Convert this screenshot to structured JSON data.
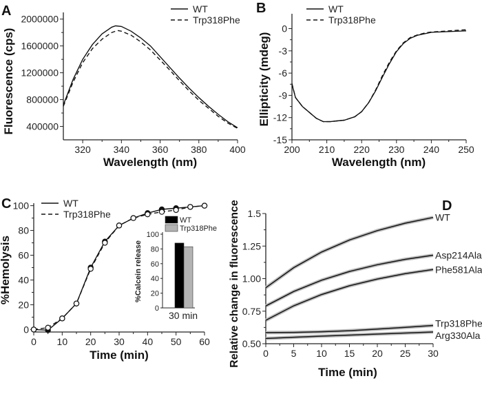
{
  "chart_data": [
    {
      "panel": "A",
      "type": "line",
      "xlabel": "Wavelength (nm)",
      "ylabel": "Fluorescence (cps)",
      "xlim": [
        310,
        400
      ],
      "ylim": [
        200000,
        2100000
      ],
      "xticks": [
        320,
        340,
        360,
        380,
        400
      ],
      "yticks": [
        400000,
        800000,
        1200000,
        1600000,
        2000000
      ],
      "legend": {
        "placement": "top-right",
        "entries": [
          "WT",
          "Trp318Phe"
        ]
      },
      "series": [
        {
          "name": "WT",
          "style": "solid",
          "x": [
            310,
            315,
            320,
            325,
            330,
            335,
            337,
            340,
            345,
            350,
            355,
            360,
            365,
            370,
            375,
            380,
            385,
            390,
            395,
            400
          ],
          "y": [
            720000,
            1100000,
            1400000,
            1620000,
            1780000,
            1880000,
            1900000,
            1890000,
            1820000,
            1720000,
            1600000,
            1440000,
            1280000,
            1120000,
            970000,
            830000,
            700000,
            580000,
            470000,
            380000
          ]
        },
        {
          "name": "Trp318Phe",
          "style": "dashed",
          "x": [
            310,
            315,
            320,
            325,
            330,
            335,
            338,
            340,
            345,
            350,
            355,
            360,
            365,
            370,
            375,
            380,
            385,
            390,
            395,
            400
          ],
          "y": [
            700000,
            1060000,
            1350000,
            1560000,
            1700000,
            1800000,
            1830000,
            1820000,
            1760000,
            1660000,
            1540000,
            1390000,
            1240000,
            1080000,
            930000,
            790000,
            670000,
            550000,
            450000,
            370000
          ]
        }
      ]
    },
    {
      "panel": "B",
      "type": "line",
      "xlabel": "Wavelength (nm)",
      "ylabel": "Ellipticity (mdeg)",
      "xlim": [
        200,
        250
      ],
      "ylim": [
        -15,
        2
      ],
      "xticks": [
        200,
        210,
        220,
        230,
        240,
        250
      ],
      "yticks": [
        -15,
        -12,
        -9,
        -6,
        -3,
        0
      ],
      "legend": {
        "placement": "top-left",
        "entries": [
          "WT",
          "Trp318Phe"
        ]
      },
      "series": [
        {
          "name": "WT",
          "style": "solid",
          "x": [
            200,
            201,
            203,
            205,
            207,
            209,
            211,
            213,
            215,
            218,
            220,
            222,
            224,
            226,
            228,
            230,
            232,
            234,
            236,
            238,
            240,
            245,
            250
          ],
          "y": [
            -7.5,
            -9.3,
            -10.5,
            -11.3,
            -12.1,
            -12.55,
            -12.55,
            -12.45,
            -12.35,
            -11.9,
            -11.2,
            -10.0,
            -8.4,
            -6.5,
            -4.7,
            -3.1,
            -2.0,
            -1.3,
            -0.9,
            -0.7,
            -0.5,
            -0.4,
            -0.3
          ]
        },
        {
          "name": "Trp318Phe",
          "style": "dashed",
          "x": [
            200,
            201,
            203,
            205,
            207,
            209,
            211,
            213,
            215,
            218,
            220,
            222,
            224,
            226,
            228,
            230,
            232,
            234,
            236,
            238,
            240,
            245,
            250
          ],
          "y": [
            -7.4,
            -9.3,
            -10.5,
            -11.3,
            -12.1,
            -12.55,
            -12.55,
            -12.45,
            -12.35,
            -11.9,
            -11.2,
            -10.0,
            -8.3,
            -6.3,
            -4.5,
            -3.0,
            -1.9,
            -1.2,
            -0.85,
            -0.6,
            -0.45,
            -0.3,
            -0.15
          ]
        }
      ]
    },
    {
      "panel": "C",
      "type": "line",
      "xlabel": "Time (min)",
      "ylabel": "%Hemolysis",
      "xlim": [
        0,
        60
      ],
      "ylim": [
        -2,
        102
      ],
      "xticks": [
        0,
        10,
        20,
        30,
        40,
        50,
        60
      ],
      "yticks": [
        0,
        20,
        40,
        60,
        80,
        100
      ],
      "legend": {
        "placement": "top-left",
        "entries": [
          "WT",
          "Trp318Phe"
        ]
      },
      "series": [
        {
          "name": "WT",
          "style": "solid",
          "marker": "filled-circle",
          "x": [
            0,
            5,
            10,
            15,
            20,
            25,
            30,
            35,
            40,
            45,
            50,
            55,
            60
          ],
          "y": [
            0,
            -0.5,
            9,
            21,
            50,
            71,
            84,
            90,
            94,
            97,
            98,
            99,
            100
          ]
        },
        {
          "name": "Trp318Phe",
          "style": "dashed",
          "marker": "open-circle",
          "x": [
            0,
            5,
            10,
            15,
            20,
            25,
            30,
            35,
            40,
            45,
            50,
            55,
            60
          ],
          "y": [
            0,
            1.5,
            9,
            21,
            49,
            70,
            84,
            90,
            93,
            95,
            96.5,
            99,
            100
          ]
        }
      ],
      "inset": {
        "type": "bar",
        "ylabel": "%Calcein release",
        "categories": [
          "30 min"
        ],
        "ylim": [
          0,
          100
        ],
        "yticks": [
          0,
          20,
          40,
          60,
          80,
          100
        ],
        "legend": {
          "placement": "top",
          "entries": [
            "WT",
            "Trp318Phe"
          ]
        },
        "series": [
          {
            "name": "WT",
            "color": "#000000",
            "values": [
              88
            ]
          },
          {
            "name": "Trp318Phe",
            "color": "#b4b4b4",
            "values": [
              83
            ]
          }
        ]
      }
    },
    {
      "panel": "D",
      "type": "line",
      "xlabel": "Time (min)",
      "ylabel": "Relative change in fluorescence",
      "xlim": [
        0,
        30
      ],
      "ylim": [
        0.5,
        1.5
      ],
      "xticks": [
        0,
        5,
        10,
        15,
        20,
        25,
        30
      ],
      "yticks": [
        0.5,
        0.75,
        1.0,
        1.25,
        1.5
      ],
      "ytick_labels": [
        "0.50",
        "0.75",
        "1.00",
        "1.25",
        "1.5"
      ],
      "series": [
        {
          "name": "WT",
          "x": [
            0,
            5,
            10,
            15,
            20,
            25,
            30
          ],
          "y": [
            0.93,
            1.084,
            1.204,
            1.297,
            1.369,
            1.426,
            1.47
          ]
        },
        {
          "name": "Asp214Ala",
          "x": [
            0,
            5,
            10,
            15,
            20,
            25,
            30
          ],
          "y": [
            0.79,
            0.901,
            0.988,
            1.055,
            1.107,
            1.148,
            1.18
          ]
        },
        {
          "name": "Phe581Ala",
          "x": [
            0,
            5,
            10,
            15,
            20,
            25,
            30
          ],
          "y": [
            0.68,
            0.791,
            0.878,
            0.945,
            0.997,
            1.038,
            1.07
          ]
        },
        {
          "name": "Trp318Phe",
          "x": [
            0,
            5,
            10,
            15,
            20,
            25,
            30
          ],
          "y": [
            0.585,
            0.587,
            0.592,
            0.6,
            0.612,
            0.626,
            0.64
          ]
        },
        {
          "name": "Arg330Ala",
          "x": [
            0,
            5,
            10,
            15,
            20,
            25,
            30
          ],
          "y": [
            0.54,
            0.55,
            0.558,
            0.566,
            0.574,
            0.582,
            0.59
          ]
        }
      ],
      "colors": {
        "raw": "#bdbdbd",
        "fit": "#111111"
      }
    }
  ]
}
